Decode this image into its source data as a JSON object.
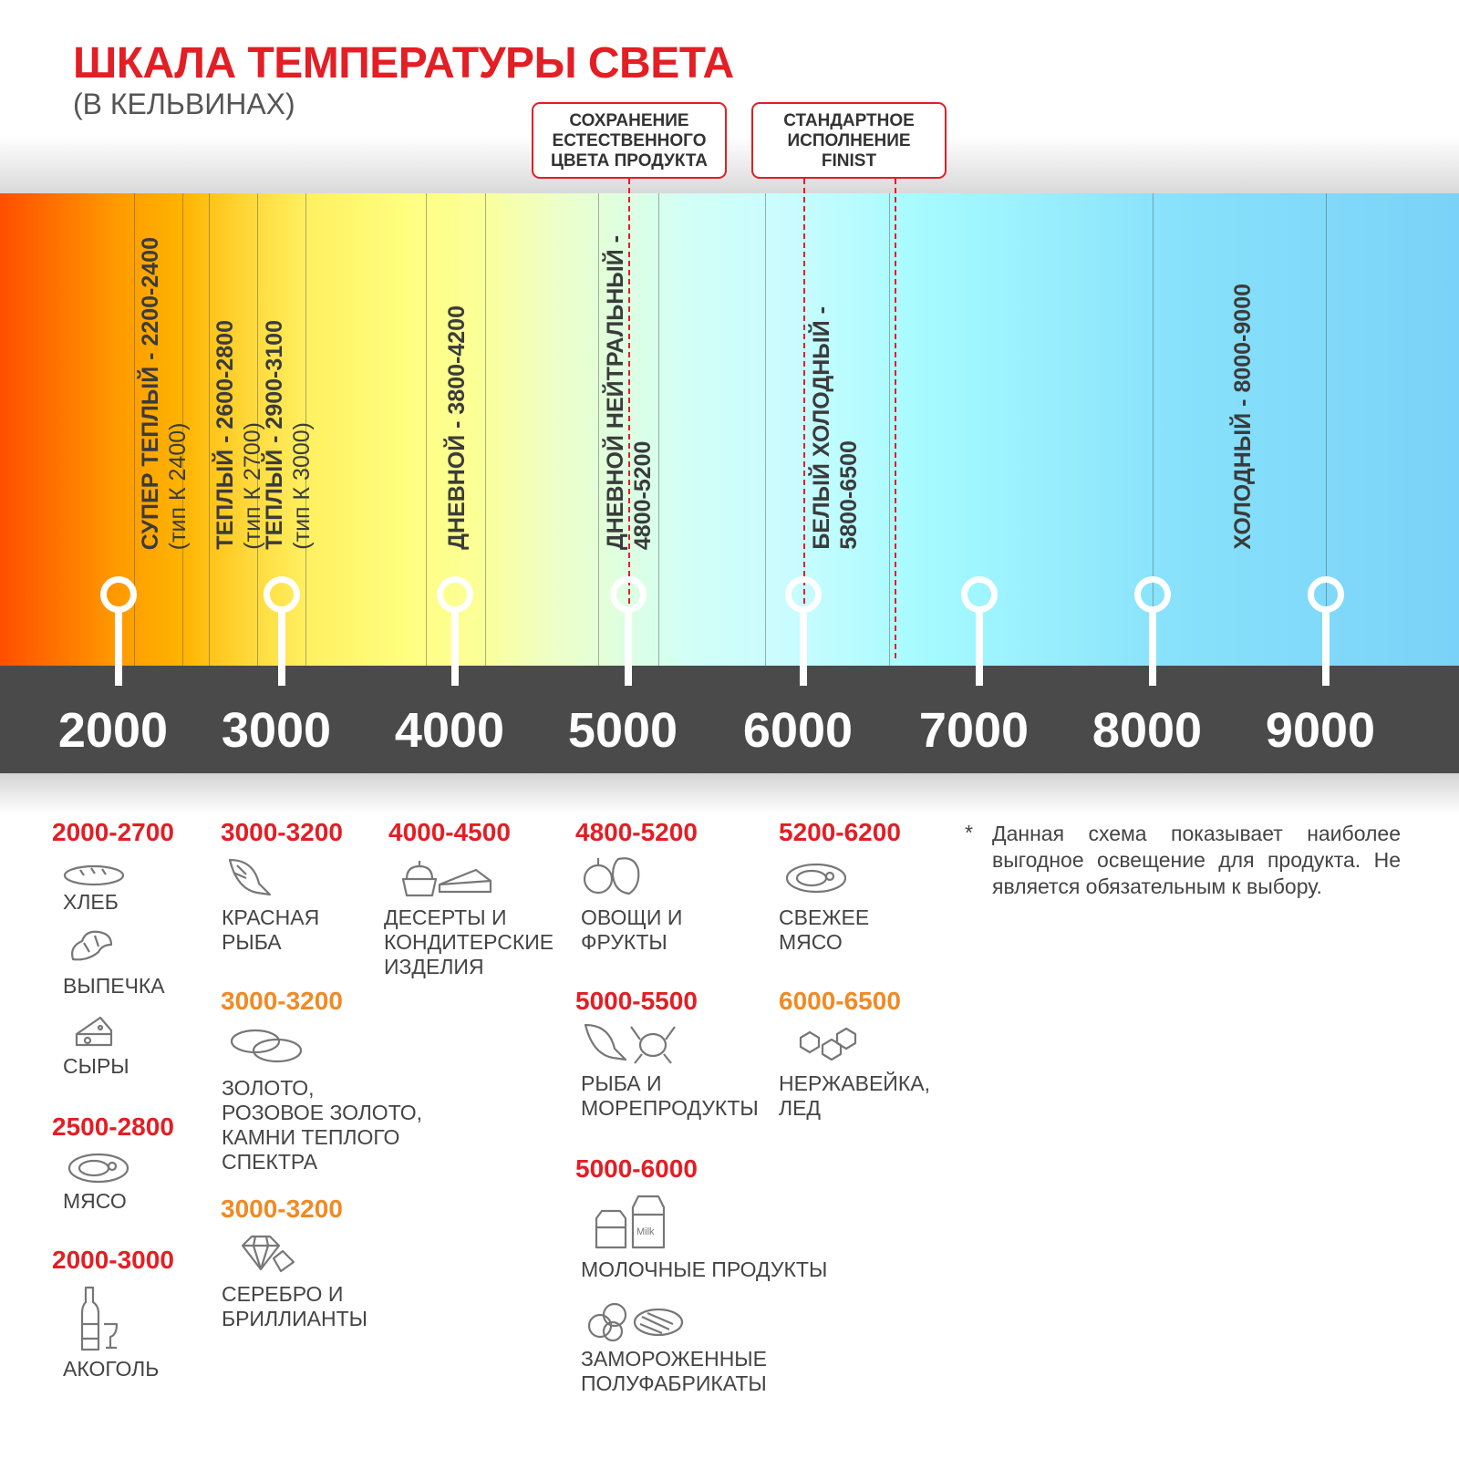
{
  "title": "ШКАЛА ТЕМПЕРАТУРЫ СВЕТА",
  "subtitle": "(В КЕЛЬВИНАХ)",
  "callouts": [
    {
      "label": "СОХРАНЕНИЕ ЕСТЕСТВЕННОГО ЦВЕТА ПРОДУКТА"
    },
    {
      "label": "СТАНДАРТНОЕ ИСПОЛНЕНИЕ FINIST"
    }
  ],
  "zones": [
    {
      "name": "СУПЕР ТЕПЛЫЙ - 2200-2400",
      "sub": "(тип К 2400)"
    },
    {
      "name": "ТЕПЛЫЙ - 2600-2800",
      "sub": "(тип К 2700)"
    },
    {
      "name": "ТЕПЛЫЙ - 2900-3100",
      "sub": "(тип К 3000)"
    },
    {
      "name": "ДНЕВНОЙ - 3800-4200",
      "sub": ""
    },
    {
      "name": "ДНЕВНОЙ НЕЙТРАЛЬНЫЙ -",
      "sub": "4800-5200"
    },
    {
      "name": "БЕЛЫЙ ХОЛОДНЫЙ -",
      "sub": "5800-6500"
    },
    {
      "name": "ХОЛОДНЫЙ - 8000-9000",
      "sub": ""
    }
  ],
  "axis_ticks": [
    "2000",
    "3000",
    "4000",
    "5000",
    "6000",
    "7000",
    "8000",
    "9000"
  ],
  "colors": {
    "accent_red": "#e31e24",
    "accent_orange": "#f08a24",
    "axis_bar": "#4a4a4a"
  },
  "groups": [
    {
      "range": "2000-2700",
      "color": "red",
      "items": [
        {
          "label": "ХЛЕБ",
          "icon": "bread-icon"
        },
        {
          "label": "ВЫПЕЧКА",
          "icon": "croissant-icon"
        },
        {
          "label": "СЫРЫ",
          "icon": "cheese-icon"
        }
      ]
    },
    {
      "range": "2500-2800",
      "color": "red",
      "items": [
        {
          "label": "МЯСО",
          "icon": "meat-icon"
        }
      ]
    },
    {
      "range": "2000-3000",
      "color": "red",
      "items": [
        {
          "label": "АКОГОЛЬ",
          "icon": "bottle-icon"
        }
      ]
    },
    {
      "range": "3000-3200",
      "color": "red",
      "items": [
        {
          "label": "КРАСНАЯ\nРЫБА",
          "icon": "fish-icon"
        }
      ]
    },
    {
      "range": "3000-3200",
      "color": "orange",
      "items": [
        {
          "label": "ЗОЛОТО,\nРОЗОВОЕ ЗОЛОТО,\nКАМНИ ТЕПЛОГО\nСПЕКТРА",
          "icon": "rings-icon"
        }
      ]
    },
    {
      "range": "3000-3200",
      "color": "orange",
      "items": [
        {
          "label": "СЕРЕБРО И\nБРИЛЛИАНТЫ",
          "icon": "diamond-icon"
        }
      ]
    },
    {
      "range": "4000-4500",
      "color": "red",
      "items": [
        {
          "label": "ДЕСЕРТЫ И\nКОНДИТЕРСКИЕ\nИЗДЕЛИЯ",
          "icon": "dessert-icon"
        }
      ]
    },
    {
      "range": "4800-5200",
      "color": "red",
      "items": [
        {
          "label": "ОВОЩИ И\nФРУКТЫ",
          "icon": "vegetables-icon"
        }
      ]
    },
    {
      "range": "5000-5500",
      "color": "red",
      "items": [
        {
          "label": "РЫБА И\nМОРЕПРОДУКТЫ",
          "icon": "seafood-icon"
        }
      ]
    },
    {
      "range": "5000-6000",
      "color": "red",
      "items": [
        {
          "label": "МОЛОЧНЫЕ ПРОДУКТЫ",
          "icon": "milk-icon"
        },
        {
          "label": "ЗАМОРОЖЕННЫЕ\nПОЛУФАБРИКАТЫ",
          "icon": "frozen-food-icon"
        }
      ]
    },
    {
      "range": "5200-6200",
      "color": "red",
      "items": [
        {
          "label": "СВЕЖЕЕ\nМЯСО",
          "icon": "steak-icon"
        }
      ]
    },
    {
      "range": "6000-6500",
      "color": "orange",
      "items": [
        {
          "label": "НЕРЖАВЕЙКА,\nЛЕД",
          "icon": "ice-icon"
        }
      ]
    }
  ],
  "note": {
    "star": "*",
    "text": "Данная схема показывает наиболее выгодное освещение для продукта. Не является обязательным к выбору."
  }
}
